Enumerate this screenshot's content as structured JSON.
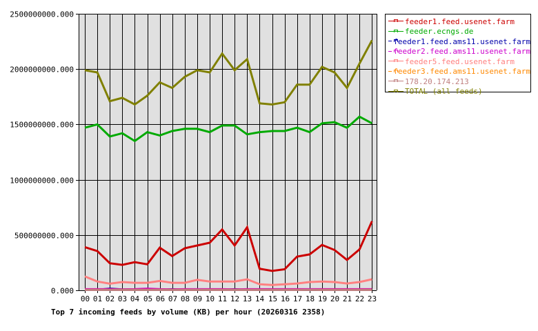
{
  "chart_data": {
    "type": "line",
    "title": "Top 7 incoming feeds by volume (KB) per hour (20260316 2358)",
    "xlabel": "",
    "ylabel": "",
    "ylim": [
      0,
      2500000000
    ],
    "yticks": [
      "0.000",
      "500000000.000",
      "1000000000.000",
      "1500000000.000",
      "2000000000.000",
      "2500000000.000"
    ],
    "categories": [
      "00",
      "01",
      "02",
      "03",
      "04",
      "05",
      "06",
      "07",
      "08",
      "09",
      "10",
      "11",
      "12",
      "13",
      "14",
      "15",
      "16",
      "17",
      "18",
      "19",
      "20",
      "21",
      "22",
      "23"
    ],
    "grid": true,
    "legend_position": "right",
    "series": [
      {
        "name": "feeder1.feed.usenet.farm",
        "color": "#cc0000",
        "values": [
          390000000,
          355000000,
          245000000,
          230000000,
          255000000,
          235000000,
          385000000,
          310000000,
          380000000,
          405000000,
          430000000,
          550000000,
          405000000,
          570000000,
          195000000,
          175000000,
          190000000,
          305000000,
          325000000,
          410000000,
          365000000,
          275000000,
          370000000,
          625000000
        ]
      },
      {
        "name": "feeder.ecngs.de",
        "color": "#00aa00",
        "values": [
          1470000000,
          1500000000,
          1390000000,
          1420000000,
          1350000000,
          1430000000,
          1400000000,
          1440000000,
          1460000000,
          1460000000,
          1430000000,
          1490000000,
          1490000000,
          1410000000,
          1430000000,
          1440000000,
          1440000000,
          1470000000,
          1430000000,
          1510000000,
          1520000000,
          1470000000,
          1570000000,
          1510000000
        ]
      },
      {
        "name": "feeder1.feed.ams11.usenet.farm",
        "color": "#0000aa",
        "values": [
          5000000,
          5000000,
          15000000,
          8000000,
          8000000,
          5000000,
          3000000,
          10000000,
          5000000,
          3000000,
          5000000,
          5000000,
          10000000,
          5000000,
          3000000,
          3000000,
          8000000,
          5000000,
          3000000,
          5000000,
          5000000,
          5000000,
          5000000,
          5000000
        ]
      },
      {
        "name": "feeder2.feed.ams11.usenet.farm",
        "color": "#cc00cc",
        "values": [
          10000000,
          10000000,
          10000000,
          8000000,
          10000000,
          15000000,
          10000000,
          8000000,
          10000000,
          10000000,
          10000000,
          10000000,
          8000000,
          10000000,
          10000000,
          10000000,
          10000000,
          10000000,
          10000000,
          10000000,
          10000000,
          10000000,
          10000000,
          10000000
        ]
      },
      {
        "name": "feeder5.feed.usenet.farm",
        "color": "#ff8080",
        "values": [
          125000000,
          80000000,
          60000000,
          75000000,
          68000000,
          68000000,
          85000000,
          68000000,
          68000000,
          95000000,
          80000000,
          80000000,
          80000000,
          100000000,
          55000000,
          48000000,
          55000000,
          62000000,
          75000000,
          80000000,
          75000000,
          62000000,
          75000000,
          100000000
        ]
      },
      {
        "name": "feeder3.feed.ams11.usenet.farm",
        "color": "#ff8800",
        "values": [
          5000000,
          5000000,
          5000000,
          5000000,
          5000000,
          5000000,
          5000000,
          5000000,
          5000000,
          5000000,
          5000000,
          5000000,
          5000000,
          5000000,
          5000000,
          5000000,
          5000000,
          5000000,
          5000000,
          5000000,
          5000000,
          5000000,
          5000000,
          5000000
        ]
      },
      {
        "name": "178.20.174.213",
        "color": "#c08080",
        "values": [
          3000000,
          3000000,
          3000000,
          3000000,
          3000000,
          3000000,
          3000000,
          3000000,
          3000000,
          5000000,
          3000000,
          3000000,
          3000000,
          3000000,
          3000000,
          3000000,
          3000000,
          3000000,
          5000000,
          3000000,
          3000000,
          3000000,
          3000000,
          3000000
        ]
      },
      {
        "name": "TOTAL (all feeds)",
        "color": "#808000",
        "values": [
          1990000000,
          1970000000,
          1710000000,
          1740000000,
          1680000000,
          1760000000,
          1880000000,
          1830000000,
          1930000000,
          1990000000,
          1970000000,
          2140000000,
          1990000000,
          2090000000,
          1690000000,
          1680000000,
          1700000000,
          1860000000,
          1860000000,
          2020000000,
          1970000000,
          1830000000,
          2050000000,
          2260000000
        ]
      }
    ]
  },
  "legend": {
    "items": [
      {
        "label": "feeder1.feed.usenet.farm",
        "color": "#cc0000"
      },
      {
        "label": "feeder.ecngs.de",
        "color": "#00aa00"
      },
      {
        "label": "feeder1.feed.ams11.usenet.farm",
        "color": "#0000aa"
      },
      {
        "label": "feeder2.feed.ams11.usenet.farm",
        "color": "#cc00cc"
      },
      {
        "label": "feeder5.feed.usenet.farm",
        "color": "#ff8080"
      },
      {
        "label": "feeder3.feed.ams11.usenet.farm",
        "color": "#ff8800"
      },
      {
        "label": "178.20.174.213",
        "color": "#c08080"
      },
      {
        "label": "TOTAL (all feeds)",
        "color": "#808000"
      }
    ]
  },
  "colors": {
    "plot_bg": "#e0e0e0",
    "grid": "#000000",
    "axis": "#000000"
  }
}
